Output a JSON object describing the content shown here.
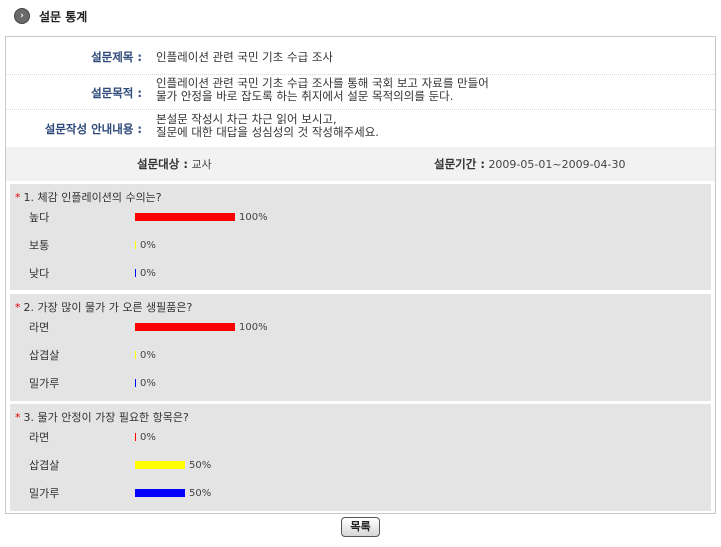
{
  "header": {
    "title": "설문 통계",
    "icon": "chevron-right-icon"
  },
  "info": {
    "title_label": "설문제목 :",
    "title_value": "인플레이션 관련 국민 기초 수급 조사",
    "purpose_label": "설문목적 :",
    "purpose_line1": "인플레이션 관련 국민 기초 수급 조사를 통해 국회 보고 자료를 만들어",
    "purpose_line2": "물가 안정을 바로 잡도록 하는 취지에서 설문 목적의의를 둔다.",
    "guide_label": "설문작성 안내내용 :",
    "guide_line1": "본설문 작성시 차근 차근 읽어 보시고,",
    "guide_line2": "질문에 대한 대답을 성심성의 것 작성해주세요."
  },
  "meta": {
    "target_label": "설문대상 :",
    "target_value": "교사",
    "period_label": "설문기간 :",
    "period_value": "2009-05-01~2009-04-30"
  },
  "colors": {
    "red": "#ff0000",
    "yellow": "#ffff00",
    "blue": "#0000ff"
  },
  "questions": [
    {
      "title": "1. 체감 인플레이션의 수의는?",
      "options": [
        {
          "label": "높다",
          "percent": 100,
          "pct_text": "100%",
          "color": "#ff0000"
        },
        {
          "label": "보통",
          "percent": 0,
          "pct_text": "0%",
          "color": "#ffff00"
        },
        {
          "label": "낮다",
          "percent": 0,
          "pct_text": "0%",
          "color": "#0000ff"
        }
      ]
    },
    {
      "title": "2. 가장 많이 물가 가 오른 생필품은?",
      "options": [
        {
          "label": "라면",
          "percent": 100,
          "pct_text": "100%",
          "color": "#ff0000"
        },
        {
          "label": "삽겹살",
          "percent": 0,
          "pct_text": "0%",
          "color": "#ffff00"
        },
        {
          "label": "밀가루",
          "percent": 0,
          "pct_text": "0%",
          "color": "#0000ff"
        }
      ]
    },
    {
      "title": "3. 물가 안정이 가장 필요한 항목은?",
      "options": [
        {
          "label": "라면",
          "percent": 0,
          "pct_text": "0%",
          "color": "#ff0000"
        },
        {
          "label": "삽겹살",
          "percent": 50,
          "pct_text": "50%",
          "color": "#ffff00"
        },
        {
          "label": "밀가루",
          "percent": 50,
          "pct_text": "50%",
          "color": "#0000ff"
        }
      ]
    }
  ],
  "footer": {
    "list_button": "목록"
  }
}
